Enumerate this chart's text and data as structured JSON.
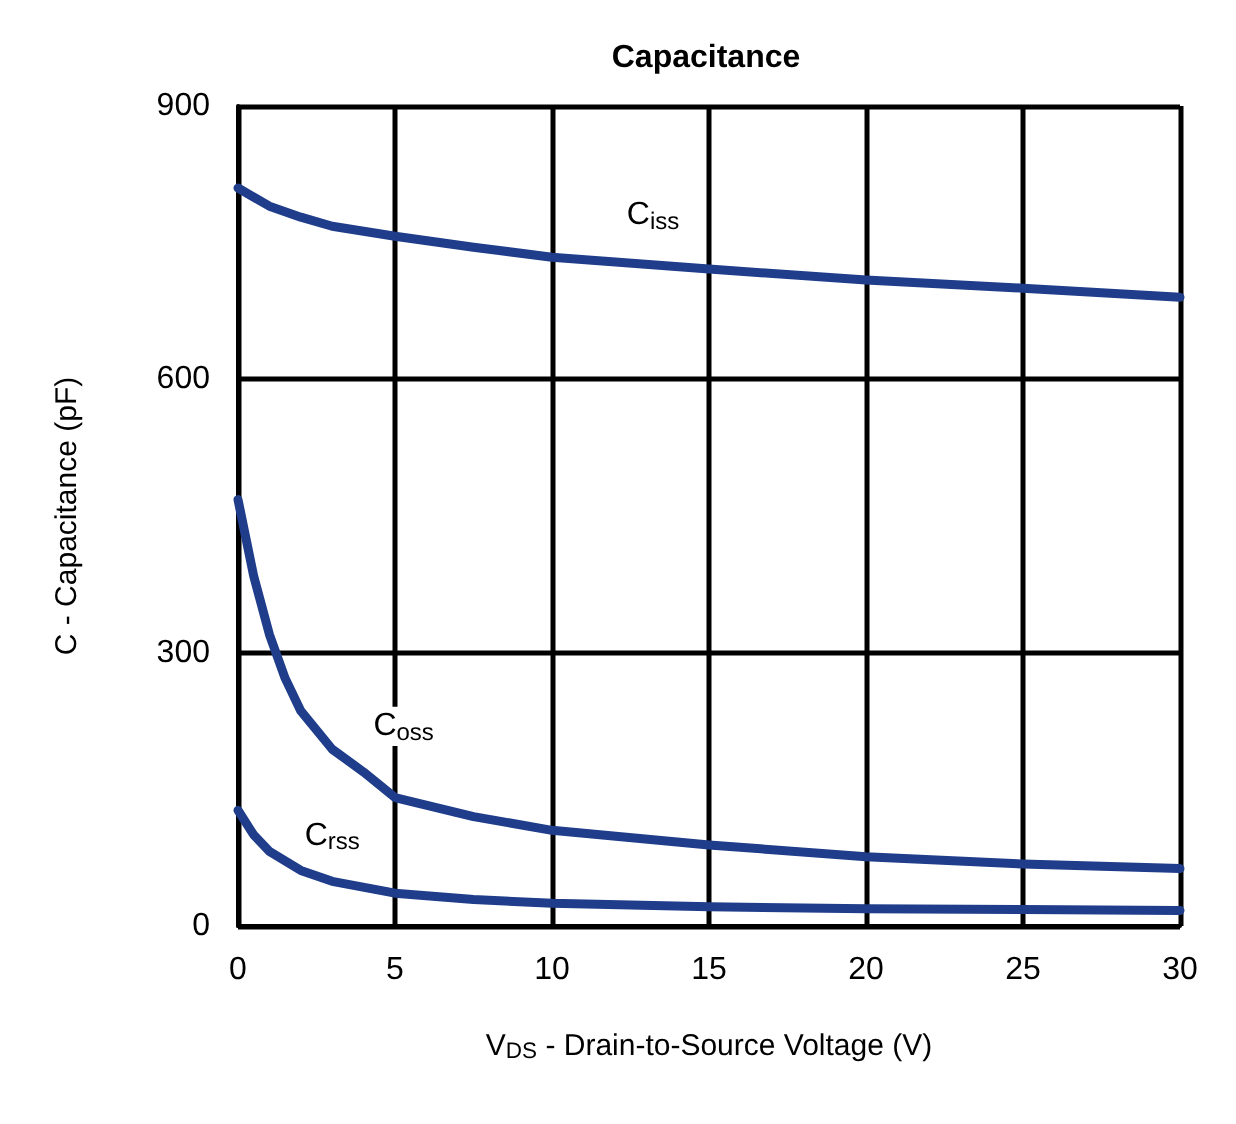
{
  "chart_data": {
    "type": "line",
    "title": "Capacitance",
    "xlabel": "V$_{DS}$ - Drain-to-Source Voltage (V)",
    "ylabel": "C - Capacitance (pF)",
    "xlim": [
      0,
      30
    ],
    "xticks": [
      0,
      5,
      10,
      15,
      20,
      25,
      30
    ],
    "ylim": [
      0,
      900
    ],
    "yticks": [
      0,
      300,
      600,
      900
    ],
    "grid": true,
    "legend": false,
    "marker": "none",
    "line_style": "solid",
    "series": [
      {
        "name": "C$_{iss}$",
        "color": "#1f3d8a",
        "x": [
          0,
          1,
          2,
          3,
          5,
          7.5,
          10,
          15,
          20,
          25,
          30
        ],
        "values": [
          810,
          790,
          778,
          768,
          757,
          745,
          734,
          721,
          709,
          700,
          690
        ]
      },
      {
        "name": "C$_{oss}$",
        "color": "#1f3d8a",
        "x": [
          0,
          0.5,
          1,
          1.5,
          2,
          3,
          4,
          5,
          7.5,
          10,
          15,
          20,
          25,
          30
        ],
        "values": [
          468,
          384,
          320,
          272,
          236,
          194,
          169,
          141,
          120,
          105,
          89,
          76,
          68,
          63
        ]
      },
      {
        "name": "C$_{rss}$",
        "color": "#1f3d8a",
        "x": [
          0,
          0.5,
          1,
          2,
          3,
          5,
          7.5,
          10,
          15,
          20,
          25,
          30
        ],
        "values": [
          127,
          100,
          82,
          61,
          49,
          36,
          29,
          25,
          21,
          19,
          18,
          17
        ]
      }
    ]
  }
}
